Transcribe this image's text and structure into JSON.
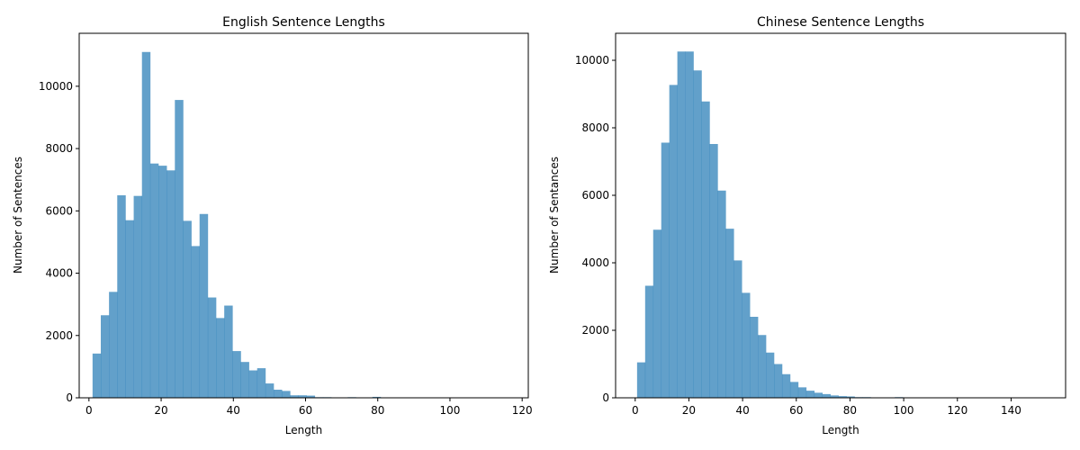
{
  "colors": {
    "bar": "#1f77b4",
    "bar_opacity": 0.7,
    "axis": "#000000",
    "background": "#ffffff"
  },
  "chart_data": [
    {
      "type": "bar",
      "title": "English Sentence Lengths",
      "xlabel": "Length",
      "ylabel": "Number of Sentences",
      "xlim": [
        -2.7,
        121.7
      ],
      "ylim": [
        0,
        11700
      ],
      "xticks": [
        0,
        20,
        40,
        60,
        80,
        100,
        120
      ],
      "yticks": [
        0,
        2000,
        4000,
        6000,
        8000,
        10000
      ],
      "bin_start": 1,
      "bin_width": 2.28,
      "values": [
        1420,
        2650,
        3400,
        6500,
        5700,
        6480,
        11100,
        7520,
        7450,
        7300,
        9560,
        5680,
        4870,
        5900,
        3220,
        2560,
        2960,
        1500,
        1150,
        880,
        950,
        460,
        260,
        220,
        80,
        80,
        70,
        20,
        20,
        10,
        10,
        20,
        0,
        0,
        30,
        0,
        0,
        0,
        0,
        0,
        0,
        0,
        0,
        0,
        0,
        0,
        0,
        0,
        0,
        0
      ],
      "grid": false,
      "legend": "none"
    },
    {
      "type": "bar",
      "title": "Chinese Sentence Lengths",
      "xlabel": "Length",
      "ylabel": "Number of Sentances",
      "xlim": [
        -7.3,
        160.3
      ],
      "ylim": [
        0,
        10800
      ],
      "xticks": [
        0,
        20,
        40,
        60,
        80,
        100,
        120,
        140
      ],
      "yticks": [
        0,
        2000,
        4000,
        6000,
        8000,
        10000
      ],
      "bin_start": 0.7,
      "bin_width": 3.0,
      "values": [
        1050,
        3320,
        4980,
        7560,
        9270,
        10260,
        10260,
        9700,
        8780,
        7520,
        6140,
        5010,
        4070,
        3110,
        2400,
        1860,
        1340,
        1000,
        700,
        470,
        310,
        210,
        150,
        110,
        70,
        50,
        40,
        20,
        20,
        10,
        10,
        10,
        20,
        0,
        0,
        0,
        0,
        0,
        0,
        0,
        0,
        0,
        0,
        0,
        0,
        0,
        0,
        0,
        0,
        0
      ],
      "grid": false,
      "legend": "none"
    }
  ]
}
